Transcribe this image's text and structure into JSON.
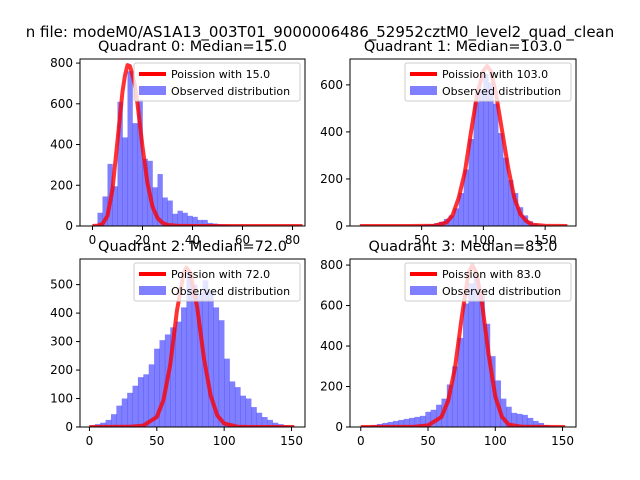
{
  "figure": {
    "suptitle": "n file: modeM0/AS1A13_003T01_9000006486_52952cztM0_level2_quad_clean"
  },
  "colors": {
    "histogram": "#0000ff",
    "histogram_alpha": 0.5,
    "poisson": "#ff0000",
    "poisson_alpha": 0.8,
    "frame": "#000000"
  },
  "chart_data": [
    {
      "type": "bar",
      "title": "Quadrant 0: Median=15.0",
      "median": 15.0,
      "xlim": [
        -5,
        85
      ],
      "ylim": [
        0,
        820
      ],
      "xticks": [
        0,
        20,
        40,
        60,
        80
      ],
      "yticks": [
        0,
        200,
        400,
        600,
        800
      ],
      "bin_width": 2,
      "legend": {
        "position": "top-right",
        "entries": [
          "Poission with 15.0",
          "Observed distribution"
        ]
      },
      "histogram": {
        "name": "Observed distribution",
        "x": [
          0,
          2,
          4,
          6,
          8,
          10,
          12,
          14,
          16,
          18,
          20,
          22,
          24,
          26,
          28,
          30,
          32,
          34,
          36,
          38,
          40,
          42,
          44,
          46,
          48,
          50,
          52,
          54,
          56,
          58,
          60,
          62,
          64,
          66,
          68,
          70,
          72,
          74,
          76,
          78,
          80,
          82
        ],
        "values": [
          5,
          65,
          145,
          305,
          195,
          610,
          435,
          760,
          505,
          620,
          330,
          320,
          190,
          255,
          140,
          125,
          60,
          75,
          65,
          50,
          45,
          30,
          30,
          15,
          12,
          8,
          6,
          4,
          3,
          2,
          1,
          1,
          0,
          0,
          0,
          0,
          0,
          0,
          0,
          0,
          0,
          0
        ]
      },
      "poisson": {
        "name": "Poission with 15.0",
        "x": [
          0,
          2,
          4,
          6,
          8,
          10,
          12,
          13,
          14,
          15,
          16,
          17,
          18,
          20,
          22,
          24,
          26,
          28,
          30,
          34,
          40,
          50,
          60,
          70,
          80,
          84
        ],
        "values": [
          0,
          2,
          10,
          50,
          180,
          420,
          660,
          740,
          790,
          785,
          740,
          690,
          600,
          390,
          210,
          95,
          40,
          15,
          5,
          1,
          0,
          0,
          0,
          0,
          0,
          0
        ]
      }
    },
    {
      "type": "bar",
      "title": "Quadrant 1: Median=103.0",
      "median": 103.0,
      "xlim": [
        -8,
        175
      ],
      "ylim": [
        0,
        710
      ],
      "xticks": [
        50,
        100,
        150
      ],
      "yticks": [
        0,
        200,
        400,
        600
      ],
      "bin_width": 4,
      "legend": {
        "position": "top-right",
        "entries": [
          "Poission with 103.0",
          "Observed distribution"
        ]
      },
      "histogram": {
        "name": "Observed distribution",
        "x": [
          40,
          44,
          48,
          52,
          56,
          60,
          64,
          68,
          72,
          76,
          80,
          84,
          88,
          92,
          96,
          100,
          104,
          108,
          112,
          116,
          120,
          124,
          128,
          132,
          136,
          140,
          144
        ],
        "values": [
          2,
          3,
          4,
          6,
          8,
          12,
          18,
          30,
          45,
          75,
          140,
          240,
          370,
          525,
          580,
          645,
          610,
          520,
          395,
          290,
          195,
          140,
          80,
          45,
          20,
          10,
          5
        ]
      },
      "poisson": {
        "name": "Poission with 103.0",
        "x": [
          0,
          40,
          60,
          70,
          75,
          80,
          85,
          90,
          95,
          100,
          103,
          106,
          110,
          115,
          120,
          125,
          130,
          135,
          140,
          150,
          168
        ],
        "values": [
          0,
          0,
          1,
          15,
          45,
          120,
          230,
          400,
          560,
          660,
          680,
          660,
          570,
          410,
          250,
          120,
          50,
          20,
          5,
          1,
          0
        ]
      }
    },
    {
      "type": "bar",
      "title": "Quadrant 2: Median=72.0",
      "median": 72.0,
      "xlim": [
        -7,
        160
      ],
      "ylim": [
        0,
        590
      ],
      "xticks": [
        0,
        50,
        100,
        150
      ],
      "yticks": [
        0,
        100,
        200,
        300,
        400,
        500
      ],
      "bin_width": 4,
      "legend": {
        "position": "top-right",
        "entries": [
          "Poission with 72.0",
          "Observed distribution"
        ]
      },
      "histogram": {
        "name": "Observed distribution",
        "x": [
          0,
          4,
          8,
          12,
          16,
          20,
          24,
          28,
          32,
          36,
          40,
          44,
          48,
          52,
          56,
          60,
          64,
          68,
          72,
          76,
          80,
          84,
          88,
          92,
          96,
          100,
          104,
          108,
          112,
          116,
          120,
          124,
          128,
          132,
          136,
          140,
          144,
          148
        ],
        "values": [
          5,
          10,
          15,
          25,
          45,
          75,
          100,
          120,
          145,
          175,
          185,
          220,
          275,
          305,
          325,
          350,
          370,
          420,
          545,
          500,
          470,
          515,
          480,
          420,
          375,
          240,
          160,
          140,
          110,
          100,
          70,
          50,
          35,
          25,
          15,
          10,
          5,
          3
        ]
      },
      "poisson": {
        "name": "Poission with 72.0",
        "x": [
          0,
          30,
          40,
          50,
          55,
          60,
          65,
          70,
          72,
          75,
          80,
          85,
          90,
          95,
          100,
          110,
          120,
          152
        ],
        "values": [
          0,
          1,
          5,
          35,
          95,
          220,
          410,
          540,
          560,
          540,
          420,
          240,
          110,
          40,
          12,
          1,
          0,
          0
        ]
      }
    },
    {
      "type": "bar",
      "title": "Quadrant 3: Median=83.0",
      "median": 83.0,
      "xlim": [
        -8,
        160
      ],
      "ylim": [
        0,
        830
      ],
      "xticks": [
        0,
        50,
        100,
        150
      ],
      "yticks": [
        0,
        200,
        400,
        600,
        800
      ],
      "bin_width": 4,
      "legend": {
        "position": "top-right",
        "entries": [
          "Poission with 83.0",
          "Observed distribution"
        ]
      },
      "histogram": {
        "name": "Observed distribution",
        "x": [
          0,
          4,
          8,
          12,
          16,
          20,
          24,
          28,
          32,
          36,
          40,
          44,
          48,
          52,
          56,
          60,
          64,
          68,
          72,
          76,
          80,
          84,
          88,
          92,
          96,
          100,
          104,
          108,
          112,
          116,
          120,
          124,
          128,
          132,
          136,
          140,
          144,
          148
        ],
        "values": [
          5,
          5,
          10,
          15,
          20,
          25,
          30,
          35,
          40,
          45,
          50,
          55,
          75,
          85,
          110,
          140,
          210,
          300,
          440,
          610,
          710,
          740,
          660,
          510,
          350,
          230,
          140,
          100,
          70,
          65,
          60,
          45,
          30,
          20,
          10,
          5,
          3,
          2
        ]
      },
      "poisson": {
        "name": "Poission with 83.0",
        "x": [
          0,
          40,
          50,
          60,
          65,
          70,
          75,
          80,
          83,
          86,
          90,
          95,
          100,
          105,
          110,
          120,
          152
        ],
        "values": [
          0,
          1,
          8,
          50,
          130,
          290,
          540,
          760,
          800,
          760,
          620,
          360,
          150,
          50,
          12,
          1,
          0
        ]
      }
    }
  ]
}
